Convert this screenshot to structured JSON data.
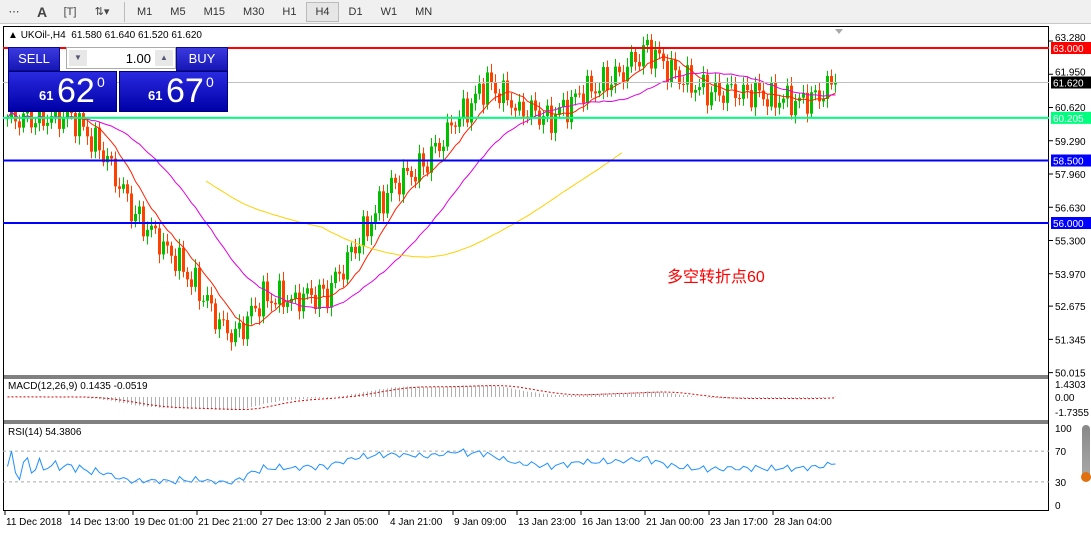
{
  "toolbar": {
    "timeframes": [
      "M1",
      "M5",
      "M15",
      "M30",
      "H1",
      "H4",
      "D1",
      "W1",
      "MN"
    ],
    "active": "H4",
    "icons": [
      "grid-icon",
      "text-a-icon",
      "text-box-icon",
      "arrows-icon"
    ]
  },
  "symbol": {
    "title": "UKOil-,H4",
    "ohlc": "61.580 61.640 61.520 61.620"
  },
  "trade_panel": {
    "sell_label": "SELL",
    "buy_label": "BUY",
    "lot": "1.00",
    "sell_prefix": "61",
    "sell_big": "62",
    "sell_sup": "0",
    "buy_prefix": "61",
    "buy_big": "67",
    "buy_sup": "0",
    "color": "#1414c0"
  },
  "annotation": {
    "text": "多空转折点60",
    "color": "#ff0000"
  },
  "chart_data": [
    {
      "type": "candlestick",
      "price_axis": [
        "63.280",
        "61.950",
        "60.620",
        "59.290",
        "57.960",
        "56.630",
        "55.300",
        "53.970",
        "52.675",
        "51.345",
        "50.015"
      ],
      "ylim": [
        50.015,
        63.28
      ],
      "levels": [
        {
          "value": "63.000",
          "color": "#ff0000"
        },
        {
          "value": "61.620",
          "color": "#c0c0c0",
          "label_bg": "#000000"
        },
        {
          "value": "60.205",
          "color": "#00ff7f"
        },
        {
          "value": "58.500",
          "color": "#0000ff"
        },
        {
          "value": "56.000",
          "color": "#0000ff"
        }
      ],
      "close_samples": [
        60.2,
        60.2,
        60.3,
        58.8,
        56.3,
        55.0,
        53.3,
        51.3,
        53.0,
        53.0,
        53.2,
        55.3,
        57.5,
        58.3,
        60.0,
        61.6,
        60.6,
        60.2,
        61.2,
        61.8,
        63.0,
        61.8,
        61.2,
        61.3,
        61.0,
        60.8,
        61.62
      ],
      "bull_color": "#00c000",
      "bear_color": "#ff4000",
      "ma_colors": [
        "#ff2000",
        "#e000e0",
        "#ffd000"
      ],
      "x_labels": [
        "11 Dec 2018",
        "14 Dec 13:00",
        "19 Dec 01:00",
        "21 Dec 21:00",
        "27 Dec 13:00",
        "2 Jan 05:00",
        "4 Jan 21:00",
        "9 Jan 09:00",
        "13 Jan 23:00",
        "16 Jan 13:00",
        "21 Jan 00:00",
        "23 Jan 17:00",
        "28 Jan 04:00"
      ]
    },
    {
      "type": "macd",
      "label": "MACD(12,26,9) 0.1435 -0.0519",
      "axis": [
        "1.4303",
        "0.00",
        "-1.7355"
      ],
      "ylim": [
        -1.7355,
        1.4303
      ]
    },
    {
      "type": "rsi",
      "label": "RSI(14) 54.3806",
      "axis": [
        "100",
        "70",
        "30",
        "0"
      ],
      "ylim": [
        0,
        100
      ],
      "levels": [
        70,
        30
      ]
    }
  ]
}
